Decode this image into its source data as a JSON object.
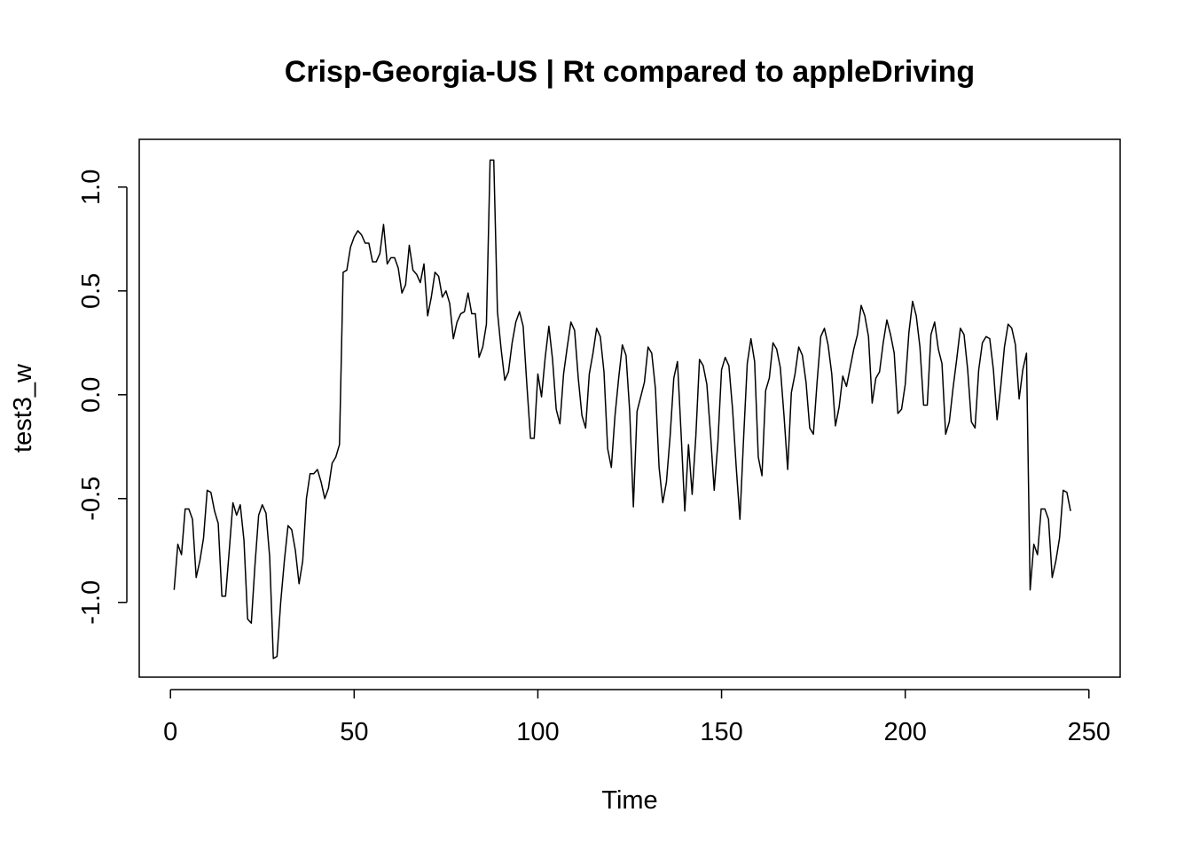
{
  "chart_data": {
    "type": "line",
    "title": "Crisp-Georgia-US | Rt compared to appleDriving",
    "xlabel": "Time",
    "ylabel": "test3_w",
    "xlim": [
      -8.5,
      258.5
    ],
    "ylim": [
      -1.36,
      1.23
    ],
    "x_ticks": [
      0,
      50,
      100,
      150,
      200,
      250
    ],
    "x_tick_labels": [
      "0",
      "50",
      "100",
      "150",
      "200",
      "250"
    ],
    "y_ticks": [
      -1.0,
      -0.5,
      0.0,
      0.5,
      1.0
    ],
    "y_tick_labels": [
      "-1.0",
      "-0.5",
      "0.0",
      "0.5",
      "1.0"
    ],
    "grid": false,
    "line_color": "#000000",
    "series": [
      {
        "x_start": 1,
        "values": [
          -0.94,
          -0.72,
          -0.77,
          -0.55,
          -0.55,
          -0.6,
          -0.88,
          -0.8,
          -0.69,
          -0.46,
          -0.47,
          -0.56,
          -0.62,
          -0.97,
          -0.97,
          -0.75,
          -0.52,
          -0.58,
          -0.53,
          -0.7,
          -1.08,
          -1.1,
          -0.82,
          -0.58,
          -0.53,
          -0.57,
          -0.78,
          -1.27,
          -1.26,
          -1.0,
          -0.8,
          -0.63,
          -0.65,
          -0.75,
          -0.91,
          -0.8,
          -0.5,
          -0.38,
          -0.38,
          -0.36,
          -0.42,
          -0.5,
          -0.45,
          -0.33,
          -0.3,
          -0.24,
          0.59,
          0.6,
          0.71,
          0.76,
          0.79,
          0.77,
          0.73,
          0.73,
          0.64,
          0.64,
          0.68,
          0.82,
          0.63,
          0.66,
          0.66,
          0.61,
          0.49,
          0.53,
          0.72,
          0.6,
          0.58,
          0.54,
          0.63,
          0.38,
          0.47,
          0.59,
          0.57,
          0.47,
          0.5,
          0.44,
          0.27,
          0.35,
          0.39,
          0.4,
          0.49,
          0.39,
          0.39,
          0.18,
          0.23,
          0.34,
          1.13,
          1.13,
          0.4,
          0.22,
          0.07,
          0.11,
          0.25,
          0.35,
          0.4,
          0.33,
          0.05,
          -0.21,
          -0.21,
          0.1,
          -0.01,
          0.18,
          0.33,
          0.17,
          -0.07,
          -0.14,
          0.1,
          0.23,
          0.35,
          0.31,
          0.08,
          -0.1,
          -0.16,
          0.1,
          0.2,
          0.32,
          0.28,
          0.11,
          -0.26,
          -0.35,
          -0.1,
          0.08,
          0.24,
          0.19,
          -0.08,
          -0.54,
          -0.08,
          -0.01,
          0.06,
          0.23,
          0.2,
          0.03,
          -0.35,
          -0.52,
          -0.42,
          -0.2,
          0.08,
          0.16,
          -0.19,
          -0.56,
          -0.24,
          -0.48,
          -0.2,
          0.17,
          0.14,
          0.05,
          -0.19,
          -0.46,
          -0.23,
          0.12,
          0.18,
          0.14,
          -0.07,
          -0.35,
          -0.6,
          -0.21,
          0.15,
          0.27,
          0.16,
          -0.3,
          -0.39,
          0.02,
          0.08,
          0.25,
          0.22,
          0.13,
          -0.1,
          -0.36,
          0.01,
          0.1,
          0.23,
          0.19,
          0.06,
          -0.16,
          -0.19,
          0.06,
          0.28,
          0.32,
          0.24,
          0.1,
          -0.15,
          -0.06,
          0.09,
          0.04,
          0.13,
          0.22,
          0.29,
          0.43,
          0.38,
          0.28,
          -0.04,
          0.08,
          0.11,
          0.25,
          0.36,
          0.29,
          0.2,
          -0.09,
          -0.07,
          0.05,
          0.3,
          0.45,
          0.38,
          0.23,
          -0.05,
          -0.05,
          0.29,
          0.35,
          0.22,
          0.15,
          -0.19,
          -0.13,
          0.03,
          0.17,
          0.32,
          0.29,
          0.12,
          -0.13,
          -0.16,
          0.12,
          0.25,
          0.28,
          0.27,
          0.12,
          -0.12,
          0.04,
          0.23,
          0.34,
          0.32,
          0.24,
          -0.02,
          0.12,
          0.2,
          -0.94,
          -0.72,
          -0.77,
          -0.55,
          -0.55,
          -0.6,
          -0.88,
          -0.8,
          -0.69,
          -0.46,
          -0.47,
          -0.56
        ]
      }
    ]
  }
}
